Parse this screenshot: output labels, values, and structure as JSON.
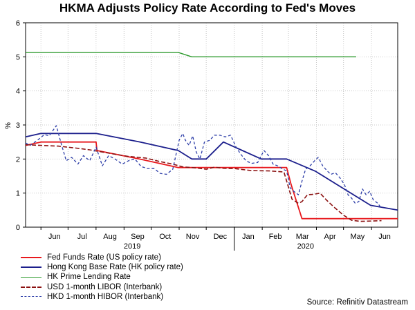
{
  "chart_data": {
    "type": "line",
    "title": "HKMA Adjusts Policy Rate According to Fed's Moves",
    "ylabel": "%",
    "ylim": [
      0,
      6
    ],
    "yticks": [
      0,
      1,
      2,
      3,
      4,
      5,
      6
    ],
    "xlim": [
      "2019-05-15",
      "2020-06-30"
    ],
    "month_ticks": [
      {
        "label": "Jun",
        "date": "2019-06-01"
      },
      {
        "label": "Jul",
        "date": "2019-07-01"
      },
      {
        "label": "Aug",
        "date": "2019-08-01"
      },
      {
        "label": "Sep",
        "date": "2019-09-01"
      },
      {
        "label": "Oct",
        "date": "2019-10-01"
      },
      {
        "label": "Nov",
        "date": "2019-11-01"
      },
      {
        "label": "Dec",
        "date": "2019-12-01"
      },
      {
        "label": "Jan",
        "date": "2020-01-01"
      },
      {
        "label": "Feb",
        "date": "2020-02-01"
      },
      {
        "label": "Mar",
        "date": "2020-03-01"
      },
      {
        "label": "Apr",
        "date": "2020-04-01"
      },
      {
        "label": "May",
        "date": "2020-05-01"
      },
      {
        "label": "Jun",
        "date": "2020-06-01"
      }
    ],
    "year_labels": [
      {
        "label": "2019",
        "date": "2019-09-10"
      },
      {
        "label": "2020",
        "date": "2020-03-20"
      }
    ],
    "grid": true,
    "legend_position": "bottom-left",
    "series": [
      {
        "name": "Fed Funds Rate (US policy rate)",
        "color": "#e8191e",
        "dash": "solid",
        "width": 1.8,
        "points": [
          [
            "2019-05-15",
            2.4
          ],
          [
            "2019-06-01",
            2.5
          ],
          [
            "2019-08-01",
            2.5
          ],
          [
            "2019-08-02",
            2.25
          ],
          [
            "2019-09-18",
            2.0
          ],
          [
            "2019-10-31",
            1.75
          ],
          [
            "2020-02-28",
            1.75
          ],
          [
            "2020-03-04",
            1.25
          ],
          [
            "2020-03-16",
            0.25
          ],
          [
            "2020-06-30",
            0.25
          ]
        ]
      },
      {
        "name": "Hong Kong Base Rate (HK policy rate)",
        "color": "#1c1f8c",
        "dash": "solid",
        "width": 1.8,
        "points": [
          [
            "2019-05-15",
            2.65
          ],
          [
            "2019-06-01",
            2.75
          ],
          [
            "2019-08-01",
            2.75
          ],
          [
            "2019-09-19",
            2.5
          ],
          [
            "2019-10-31",
            2.25
          ],
          [
            "2019-11-15",
            2.0
          ],
          [
            "2019-12-01",
            2.0
          ],
          [
            "2019-12-20",
            2.5
          ],
          [
            "2020-01-10",
            2.25
          ],
          [
            "2020-01-31",
            2.0
          ],
          [
            "2020-02-28",
            2.0
          ],
          [
            "2020-03-31",
            1.64
          ],
          [
            "2020-05-31",
            0.64
          ],
          [
            "2020-06-30",
            0.5
          ]
        ]
      },
      {
        "name": "HK Prime Lending Rate",
        "color": "#2e9b2e",
        "dash": "solid",
        "width": 1.4,
        "points": [
          [
            "2019-05-15",
            5.13
          ],
          [
            "2019-10-31",
            5.13
          ],
          [
            "2019-11-15",
            5.0
          ],
          [
            "2020-05-15",
            5.0
          ]
        ]
      },
      {
        "name": "USD 1-month LIBOR (Interbank)",
        "color": "#8b1010",
        "dash": "6,3",
        "width": 1.6,
        "points": [
          [
            "2019-05-15",
            2.42
          ],
          [
            "2019-06-01",
            2.4
          ],
          [
            "2019-06-20",
            2.38
          ],
          [
            "2019-07-10",
            2.32
          ],
          [
            "2019-07-25",
            2.27
          ],
          [
            "2019-08-05",
            2.22
          ],
          [
            "2019-08-20",
            2.15
          ],
          [
            "2019-09-05",
            2.08
          ],
          [
            "2019-09-25",
            2.03
          ],
          [
            "2019-10-10",
            1.93
          ],
          [
            "2019-10-25",
            1.85
          ],
          [
            "2019-11-05",
            1.77
          ],
          [
            "2019-11-20",
            1.74
          ],
          [
            "2019-12-01",
            1.7
          ],
          [
            "2019-12-10",
            1.76
          ],
          [
            "2019-12-20",
            1.73
          ],
          [
            "2020-01-01",
            1.72
          ],
          [
            "2020-01-20",
            1.66
          ],
          [
            "2020-02-10",
            1.65
          ],
          [
            "2020-02-25",
            1.62
          ],
          [
            "2020-03-05",
            0.82
          ],
          [
            "2020-03-12",
            0.7
          ],
          [
            "2020-03-16",
            0.75
          ],
          [
            "2020-03-22",
            0.95
          ],
          [
            "2020-03-28",
            0.96
          ],
          [
            "2020-04-05",
            1.0
          ],
          [
            "2020-04-12",
            0.8
          ],
          [
            "2020-04-20",
            0.6
          ],
          [
            "2020-05-01",
            0.35
          ],
          [
            "2020-05-10",
            0.2
          ],
          [
            "2020-05-20",
            0.17
          ],
          [
            "2020-06-01",
            0.18
          ],
          [
            "2020-06-12",
            0.19
          ]
        ]
      },
      {
        "name": "HKD 1-month HIBOR (Interbank)",
        "color": "#2d3ea8",
        "dash": "4,3",
        "width": 1.3,
        "points": [
          [
            "2019-05-15",
            2.47
          ],
          [
            "2019-05-20",
            2.4
          ],
          [
            "2019-05-28",
            2.55
          ],
          [
            "2019-06-05",
            2.72
          ],
          [
            "2019-06-10",
            2.68
          ],
          [
            "2019-06-18",
            2.98
          ],
          [
            "2019-06-24",
            2.4
          ],
          [
            "2019-06-29",
            1.95
          ],
          [
            "2019-07-05",
            2.05
          ],
          [
            "2019-07-12",
            1.85
          ],
          [
            "2019-07-18",
            2.1
          ],
          [
            "2019-07-25",
            1.95
          ],
          [
            "2019-08-01",
            2.35
          ],
          [
            "2019-08-08",
            1.8
          ],
          [
            "2019-08-15",
            2.1
          ],
          [
            "2019-08-22",
            2.0
          ],
          [
            "2019-08-30",
            1.85
          ],
          [
            "2019-09-06",
            1.95
          ],
          [
            "2019-09-13",
            2.0
          ],
          [
            "2019-09-20",
            1.78
          ],
          [
            "2019-09-27",
            1.72
          ],
          [
            "2019-10-04",
            1.73
          ],
          [
            "2019-10-11",
            1.58
          ],
          [
            "2019-10-18",
            1.55
          ],
          [
            "2019-10-25",
            1.7
          ],
          [
            "2019-11-01",
            2.55
          ],
          [
            "2019-11-05",
            2.75
          ],
          [
            "2019-11-08",
            2.55
          ],
          [
            "2019-11-12",
            2.4
          ],
          [
            "2019-11-16",
            2.68
          ],
          [
            "2019-11-20",
            2.2
          ],
          [
            "2019-11-24",
            2.0
          ],
          [
            "2019-11-29",
            2.5
          ],
          [
            "2019-12-05",
            2.55
          ],
          [
            "2019-12-10",
            2.7
          ],
          [
            "2019-12-16",
            2.7
          ],
          [
            "2019-12-22",
            2.65
          ],
          [
            "2019-12-28",
            2.7
          ],
          [
            "2020-01-03",
            2.35
          ],
          [
            "2020-01-08",
            2.15
          ],
          [
            "2020-01-14",
            1.95
          ],
          [
            "2020-01-20",
            1.87
          ],
          [
            "2020-01-27",
            1.9
          ],
          [
            "2020-02-03",
            2.25
          ],
          [
            "2020-02-08",
            2.1
          ],
          [
            "2020-02-13",
            1.85
          ],
          [
            "2020-02-18",
            1.8
          ],
          [
            "2020-02-24",
            1.7
          ],
          [
            "2020-02-28",
            1.65
          ],
          [
            "2020-03-03",
            1.15
          ],
          [
            "2020-03-07",
            1.05
          ],
          [
            "2020-03-12",
            0.95
          ],
          [
            "2020-03-16",
            1.35
          ],
          [
            "2020-03-20",
            1.7
          ],
          [
            "2020-03-25",
            1.8
          ],
          [
            "2020-03-30",
            1.95
          ],
          [
            "2020-04-03",
            2.05
          ],
          [
            "2020-04-08",
            1.8
          ],
          [
            "2020-04-13",
            1.65
          ],
          [
            "2020-04-17",
            1.55
          ],
          [
            "2020-04-22",
            1.6
          ],
          [
            "2020-04-27",
            1.45
          ],
          [
            "2020-05-02",
            1.25
          ],
          [
            "2020-05-06",
            0.95
          ],
          [
            "2020-05-10",
            0.85
          ],
          [
            "2020-05-14",
            0.7
          ],
          [
            "2020-05-18",
            0.75
          ],
          [
            "2020-05-22",
            1.12
          ],
          [
            "2020-05-26",
            0.95
          ],
          [
            "2020-05-30",
            1.05
          ],
          [
            "2020-06-03",
            0.8
          ],
          [
            "2020-06-08",
            0.7
          ],
          [
            "2020-06-12",
            0.55
          ]
        ]
      }
    ],
    "source": "Source: Refinitiv Datastream"
  }
}
